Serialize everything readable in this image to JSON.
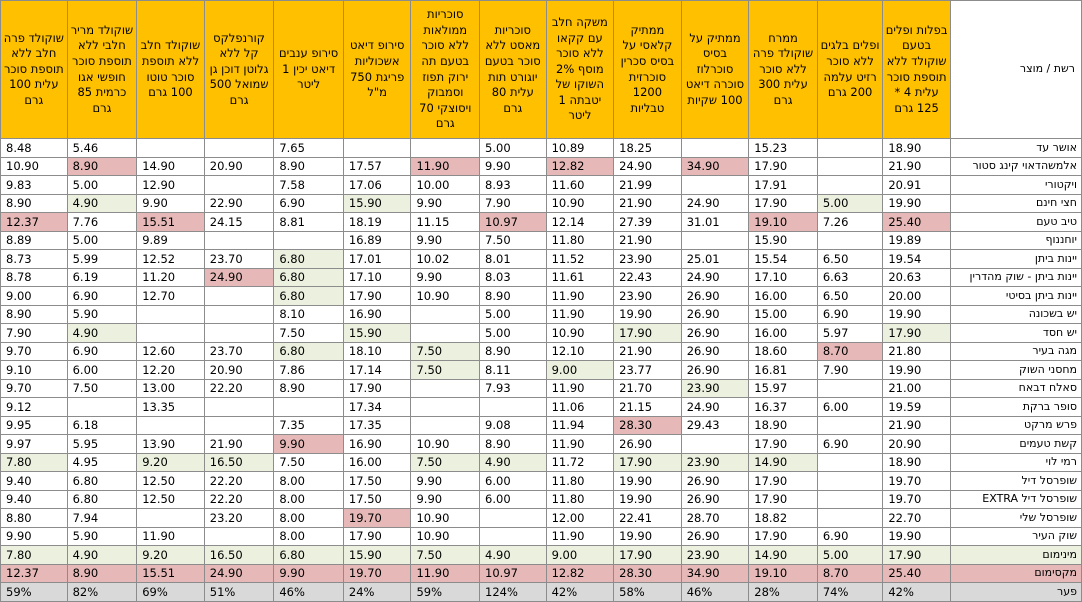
{
  "header": {
    "name_col": "רשת / מוצר",
    "products": [
      "בפלות ופלים בטעם שוקולד ללא תוספת סוכר עלית 4 * 125 גרם",
      "ופלים בלגים ללא סוכר רזיט עלמה 200 גרם",
      "ממרח שוקולד פרה ללא סוכר עלית 300 גרם",
      "ממתיק על בסיס סוכרלוז סוכרה דיאט 100 שקיות",
      "ממתיק קלאסי על בסיס סכרין סוכרזית 1200 טבליות",
      "משקה חלב עם קקאו ללא סוכר מוסף 2% השוקו של יטבתה 1 ליטר",
      "סוכריות מאסט ללא סוכר בטעם יוגורט תות עלית 80 גרם",
      "סוכריות ממולאות ללא סוכר בטעם תה ירוק תפוז וסמבוק ויסוצקי 70 גרם",
      "סירופ דיאט אשכוליות פריגת 750 מ\"ל",
      "סירופ ענבים דיאט יכין 1 ליטר",
      "קורנפלקס קל ללא גלוטן דוכן גן שמואל 500 גרם",
      "שוקולד חלב ללא תוספת סוכר טוטו 100 גרם",
      "שוקולד מריר חלבי ללא תוספת סוכר חופשי אגו כרמית 85 גרם",
      "שוקולד פרה חלב ללא תוספת סוכר עלית 100 גרם"
    ]
  },
  "rows": [
    {
      "name": "אושר עד",
      "cells": [
        "18.90",
        "",
        "15.23",
        "",
        "18.25",
        "10.89",
        "5.00",
        "",
        "",
        "7.65",
        "",
        "",
        "5.46",
        "8.48"
      ],
      "hl": [
        "",
        "",
        "",
        "",
        "",
        "",
        "",
        "",
        "",
        "",
        "",
        "",
        "",
        ""
      ]
    },
    {
      "name": "אלמשהדאוי קינג סטור",
      "cells": [
        "21.90",
        "",
        "17.90",
        "34.90",
        "24.90",
        "12.82",
        "9.90",
        "11.90",
        "17.57",
        "8.90",
        "20.90",
        "14.90",
        "8.90",
        "10.90"
      ],
      "hl": [
        "",
        "",
        "",
        "r",
        "",
        "r",
        "",
        "r",
        "",
        "",
        "",
        "",
        "r",
        ""
      ]
    },
    {
      "name": "ויקטורי",
      "cells": [
        "20.91",
        "",
        "17.91",
        "",
        "21.99",
        "11.60",
        "8.93",
        "10.00",
        "17.06",
        "7.58",
        "",
        "12.90",
        "5.00",
        "9.83"
      ],
      "hl": [
        "",
        "",
        "",
        "",
        "",
        "",
        "",
        "",
        "",
        "",
        "",
        "",
        "",
        ""
      ]
    },
    {
      "name": "חצי חינם",
      "cells": [
        "19.90",
        "5.00",
        "17.90",
        "24.90",
        "21.90",
        "10.90",
        "7.90",
        "9.90",
        "15.90",
        "6.90",
        "22.90",
        "9.90",
        "4.90",
        "8.90"
      ],
      "hl": [
        "",
        "g",
        "",
        "",
        "",
        "",
        "",
        "",
        "g",
        "",
        "",
        "",
        "g",
        ""
      ]
    },
    {
      "name": "טיב טעם",
      "cells": [
        "25.40",
        "7.26",
        "19.10",
        "31.01",
        "27.39",
        "12.14",
        "10.97",
        "11.15",
        "18.19",
        "8.81",
        "24.15",
        "15.51",
        "7.76",
        "12.37"
      ],
      "hl": [
        "r",
        "",
        "r",
        "",
        "",
        "",
        "r",
        "",
        "",
        "",
        "",
        "r",
        "",
        "r"
      ]
    },
    {
      "name": "יוחננוף",
      "cells": [
        "19.89",
        "",
        "15.90",
        "",
        "21.90",
        "11.80",
        "7.50",
        "9.90",
        "16.89",
        "",
        "",
        "9.89",
        "5.00",
        "8.89"
      ],
      "hl": [
        "",
        "",
        "",
        "",
        "",
        "",
        "",
        "",
        "",
        "",
        "",
        "",
        "",
        ""
      ]
    },
    {
      "name": "יינות ביתן",
      "cells": [
        "19.54",
        "6.50",
        "15.54",
        "25.01",
        "23.90",
        "11.52",
        "8.01",
        "10.02",
        "17.01",
        "6.80",
        "23.70",
        "12.52",
        "5.99",
        "8.73"
      ],
      "hl": [
        "",
        "",
        "",
        "",
        "",
        "",
        "",
        "",
        "",
        "g",
        "",
        "",
        "",
        ""
      ]
    },
    {
      "name": "יינות ביתן - שוק מהדרין",
      "cells": [
        "20.63",
        "6.63",
        "17.10",
        "24.90",
        "22.43",
        "11.61",
        "8.03",
        "9.90",
        "17.10",
        "6.80",
        "24.90",
        "11.20",
        "6.19",
        "8.78"
      ],
      "hl": [
        "",
        "",
        "",
        "",
        "",
        "",
        "",
        "",
        "",
        "g",
        "r",
        "",
        "",
        ""
      ]
    },
    {
      "name": "יינות ביתן בסיטי",
      "cells": [
        "20.00",
        "6.50",
        "16.00",
        "26.90",
        "23.90",
        "11.90",
        "8.90",
        "10.90",
        "17.90",
        "6.80",
        "",
        "12.70",
        "6.90",
        "9.00"
      ],
      "hl": [
        "",
        "",
        "",
        "",
        "",
        "",
        "",
        "",
        "",
        "g",
        "",
        "",
        "",
        ""
      ]
    },
    {
      "name": "יש בשכונה",
      "cells": [
        "19.90",
        "6.90",
        "15.00",
        "26.90",
        "19.90",
        "11.90",
        "5.00",
        "",
        "16.90",
        "8.10",
        "",
        "",
        "5.90",
        "8.90"
      ],
      "hl": [
        "",
        "",
        "",
        "",
        "",
        "",
        "",
        "",
        "",
        "",
        "",
        "",
        "",
        ""
      ]
    },
    {
      "name": "יש חסד",
      "cells": [
        "17.90",
        "5.97",
        "16.00",
        "26.90",
        "17.90",
        "10.90",
        "5.00",
        "",
        "15.90",
        "7.50",
        "",
        "",
        "4.90",
        "7.90"
      ],
      "hl": [
        "g",
        "",
        "",
        "",
        "g",
        "",
        "",
        "",
        "g",
        "",
        "",
        "",
        "g",
        ""
      ]
    },
    {
      "name": "מגה בעיר",
      "cells": [
        "21.80",
        "8.70",
        "18.60",
        "26.90",
        "21.90",
        "12.10",
        "8.90",
        "7.50",
        "18.10",
        "6.80",
        "23.70",
        "12.60",
        "6.90",
        "9.70"
      ],
      "hl": [
        "",
        "r",
        "",
        "",
        "",
        "",
        "",
        "g",
        "",
        "g",
        "",
        "",
        "",
        ""
      ]
    },
    {
      "name": "מחסני השוק",
      "cells": [
        "19.90",
        "7.90",
        "16.81",
        "26.90",
        "23.77",
        "9.00",
        "8.11",
        "7.50",
        "17.14",
        "7.86",
        "20.90",
        "12.20",
        "6.00",
        "9.10"
      ],
      "hl": [
        "",
        "",
        "",
        "",
        "",
        "g",
        "",
        "g",
        "",
        "",
        "",
        "",
        "",
        ""
      ]
    },
    {
      "name": "סאלח דבאח",
      "cells": [
        "21.00",
        "",
        "15.97",
        "23.90",
        "21.70",
        "11.90",
        "7.93",
        "",
        "17.90",
        "8.90",
        "22.20",
        "13.00",
        "7.50",
        "9.70"
      ],
      "hl": [
        "",
        "",
        "",
        "g",
        "",
        "",
        "",
        "",
        "",
        "",
        "",
        "",
        "",
        ""
      ]
    },
    {
      "name": "סופר ברקת",
      "cells": [
        "19.59",
        "6.00",
        "16.37",
        "24.90",
        "21.15",
        "11.06",
        "",
        "",
        "17.34",
        "",
        "",
        "13.35",
        "",
        "9.12"
      ],
      "hl": [
        "",
        "",
        "",
        "",
        "",
        "",
        "",
        "",
        "",
        "",
        "",
        "",
        "",
        ""
      ]
    },
    {
      "name": "פרש מרקט",
      "cells": [
        "21.90",
        "",
        "18.90",
        "29.43",
        "28.30",
        "11.94",
        "9.08",
        "",
        "17.35",
        "7.35",
        "",
        "",
        "6.18",
        "9.95"
      ],
      "hl": [
        "",
        "",
        "",
        "",
        "r",
        "",
        "",
        "",
        "",
        "",
        "",
        "",
        "",
        ""
      ]
    },
    {
      "name": "קשת טעמים",
      "cells": [
        "20.90",
        "6.90",
        "17.90",
        "",
        "26.90",
        "11.90",
        "8.90",
        "10.90",
        "16.90",
        "9.90",
        "21.90",
        "13.90",
        "5.95",
        "9.97"
      ],
      "hl": [
        "",
        "",
        "",
        "",
        "",
        "",
        "",
        "",
        "",
        "r",
        "",
        "",
        "",
        ""
      ]
    },
    {
      "name": "רמי לוי",
      "cells": [
        "18.90",
        "",
        "14.90",
        "23.90",
        "17.90",
        "11.72",
        "4.90",
        "7.50",
        "16.00",
        "7.50",
        "16.50",
        "9.20",
        "4.95",
        "7.80"
      ],
      "hl": [
        "",
        "",
        "g",
        "g",
        "g",
        "",
        "g",
        "g",
        "",
        "",
        "g",
        "g",
        "",
        "g"
      ]
    },
    {
      "name": "שופרסל דיל",
      "cells": [
        "19.70",
        "",
        "17.90",
        "26.90",
        "19.90",
        "11.80",
        "6.00",
        "9.90",
        "17.50",
        "8.00",
        "22.20",
        "12.50",
        "6.80",
        "9.40"
      ],
      "hl": [
        "",
        "",
        "",
        "",
        "",
        "",
        "",
        "",
        "",
        "",
        "",
        "",
        "",
        ""
      ]
    },
    {
      "name": "שופרסל דיל EXTRA",
      "cells": [
        "19.70",
        "",
        "17.90",
        "26.90",
        "19.90",
        "11.80",
        "6.00",
        "9.90",
        "17.50",
        "8.00",
        "22.20",
        "12.50",
        "6.80",
        "9.40"
      ],
      "hl": [
        "",
        "",
        "",
        "",
        "",
        "",
        "",
        "",
        "",
        "",
        "",
        "",
        "",
        ""
      ]
    },
    {
      "name": "שופרסל שלי",
      "cells": [
        "22.70",
        "",
        "18.82",
        "28.70",
        "22.41",
        "12.00",
        "",
        "10.90",
        "19.70",
        "8.00",
        "23.20",
        "",
        "7.94",
        "8.80"
      ],
      "hl": [
        "",
        "",
        "",
        "",
        "",
        "",
        "",
        "",
        "r",
        "",
        "",
        "",
        "",
        ""
      ]
    },
    {
      "name": "שוק העיר",
      "cells": [
        "19.90",
        "6.90",
        "17.90",
        "26.90",
        "19.90",
        "11.90",
        "",
        "10.90",
        "17.90",
        "8.00",
        "",
        "11.90",
        "5.90",
        "9.90"
      ],
      "hl": [
        "",
        "",
        "",
        "",
        "",
        "",
        "",
        "",
        "",
        "",
        "",
        "",
        "",
        ""
      ]
    }
  ],
  "summary": {
    "min": {
      "label": "מינימום",
      "cells": [
        "17.90",
        "5.00",
        "14.90",
        "23.90",
        "17.90",
        "9.00",
        "4.90",
        "7.50",
        "15.90",
        "6.80",
        "16.50",
        "9.20",
        "4.90",
        "7.80"
      ]
    },
    "max": {
      "label": "מקסימום",
      "cells": [
        "25.40",
        "8.70",
        "19.10",
        "34.90",
        "28.30",
        "12.82",
        "10.97",
        "11.90",
        "19.70",
        "9.90",
        "24.90",
        "15.51",
        "8.90",
        "12.37"
      ]
    },
    "gap": {
      "label": "פער",
      "cells": [
        "42%",
        "74%",
        "28%",
        "46%",
        "58%",
        "42%",
        "124%",
        "59%",
        "24%",
        "46%",
        "51%",
        "69%",
        "82%",
        "59%"
      ]
    }
  },
  "colors": {
    "header": "#ffc000",
    "cheapest": "#ebf1de",
    "priciest": "#e6b9b8",
    "gap_row": "#d9d9d9"
  }
}
